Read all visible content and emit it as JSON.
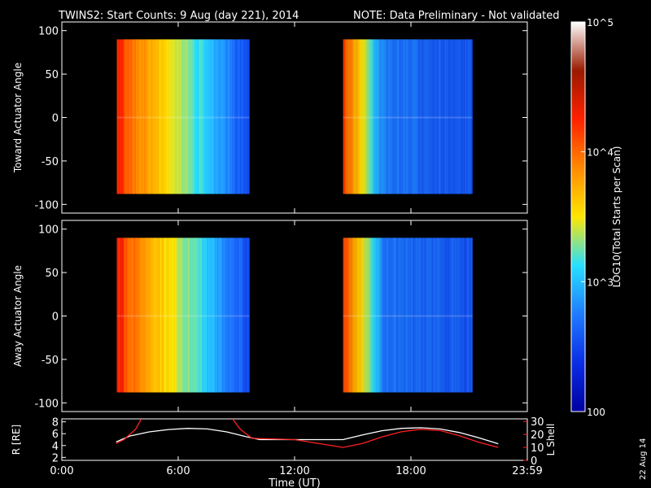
{
  "title": {
    "main": "TWINS2: Start Counts:  9 Aug (day 221), 2014",
    "note": "NOTE: Data Preliminary - Not validated",
    "note_color": "#ff2020"
  },
  "stamp": "22 Aug 14",
  "colorbar": {
    "label": "LOG10(Total Starts per Scan)",
    "ticks": [
      "10^5",
      "10^4",
      "10^3",
      "100"
    ],
    "tick_values": [
      100000,
      10000,
      1000,
      100
    ],
    "scale": "log",
    "range": [
      100,
      100000
    ],
    "colormap": [
      "#ffffff",
      "#9a1a00",
      "#ff2000",
      "#ff8a00",
      "#ffe600",
      "#27e0ff",
      "#1f7bff",
      "#0a2de6",
      "#0000a0"
    ]
  },
  "chart_data": [
    {
      "type": "heatmap",
      "panel": "top",
      "ylabel": "Toward Actuator Angle",
      "ylim": [
        -110,
        110
      ],
      "yticks": [
        100,
        50,
        0,
        -50,
        -100
      ],
      "x_range_hours": [
        0,
        24
      ],
      "data_blocks_ut": [
        [
          "02:50",
          "09:40"
        ],
        [
          "14:30",
          "21:10"
        ]
      ],
      "angle_range": [
        -88,
        90
      ]
    },
    {
      "type": "heatmap",
      "panel": "middle",
      "ylabel": "Away Actuator Angle",
      "ylim": [
        -110,
        110
      ],
      "yticks": [
        100,
        50,
        0,
        -50,
        -100
      ],
      "x_range_hours": [
        0,
        24
      ],
      "data_blocks_ut": [
        [
          "02:50",
          "09:40"
        ],
        [
          "14:30",
          "21:10"
        ]
      ],
      "angle_range": [
        -88,
        90
      ]
    },
    {
      "type": "line",
      "panel": "bottom",
      "ylabel_left": "R [RE]",
      "ylabel_right": "L Shell",
      "yticks_left": [
        2,
        4,
        6,
        8
      ],
      "yticks_right": [
        0,
        10,
        20,
        30
      ],
      "ylim_left": [
        1.5,
        8.5
      ],
      "ylim_right": [
        0,
        32
      ],
      "xlabel": "Time (UT)",
      "xticks": [
        "0:00",
        "6:00",
        "12:00",
        "18:00",
        "23:59"
      ],
      "series": [
        {
          "name": "R",
          "axis": "left",
          "color": "#ffffff",
          "points": [
            [
              2.8,
              4.6
            ],
            [
              3.5,
              5.6
            ],
            [
              4.5,
              6.3
            ],
            [
              5.5,
              6.7
            ],
            [
              6.5,
              6.9
            ],
            [
              7.5,
              6.8
            ],
            [
              8.5,
              6.3
            ],
            [
              9.5,
              5.5
            ],
            [
              10.2,
              5.0
            ],
            [
              14.5,
              5.0
            ],
            [
              15.5,
              5.8
            ],
            [
              16.5,
              6.5
            ],
            [
              17.5,
              6.9
            ],
            [
              18.5,
              7.0
            ],
            [
              19.5,
              6.8
            ],
            [
              20.5,
              6.2
            ],
            [
              21.5,
              5.3
            ],
            [
              22.5,
              4.3
            ]
          ]
        },
        {
          "name": "L Shell",
          "axis": "right",
          "color": "#ff2020",
          "points": [
            [
              2.8,
              13
            ],
            [
              3.2,
              16
            ],
            [
              3.8,
              24
            ],
            [
              4.1,
              32
            ]
          ],
          "points_b": [
            [
              8.8,
              32
            ],
            [
              9.2,
              24
            ],
            [
              9.8,
              17
            ],
            [
              12.0,
              16
            ],
            [
              14.5,
              10
            ],
            [
              15.5,
              13
            ],
            [
              16.5,
              18
            ],
            [
              17.5,
              22
            ],
            [
              18.5,
              24
            ],
            [
              19.5,
              23
            ],
            [
              20.5,
              19
            ],
            [
              21.5,
              14
            ],
            [
              22.5,
              10
            ]
          ]
        }
      ]
    }
  ]
}
